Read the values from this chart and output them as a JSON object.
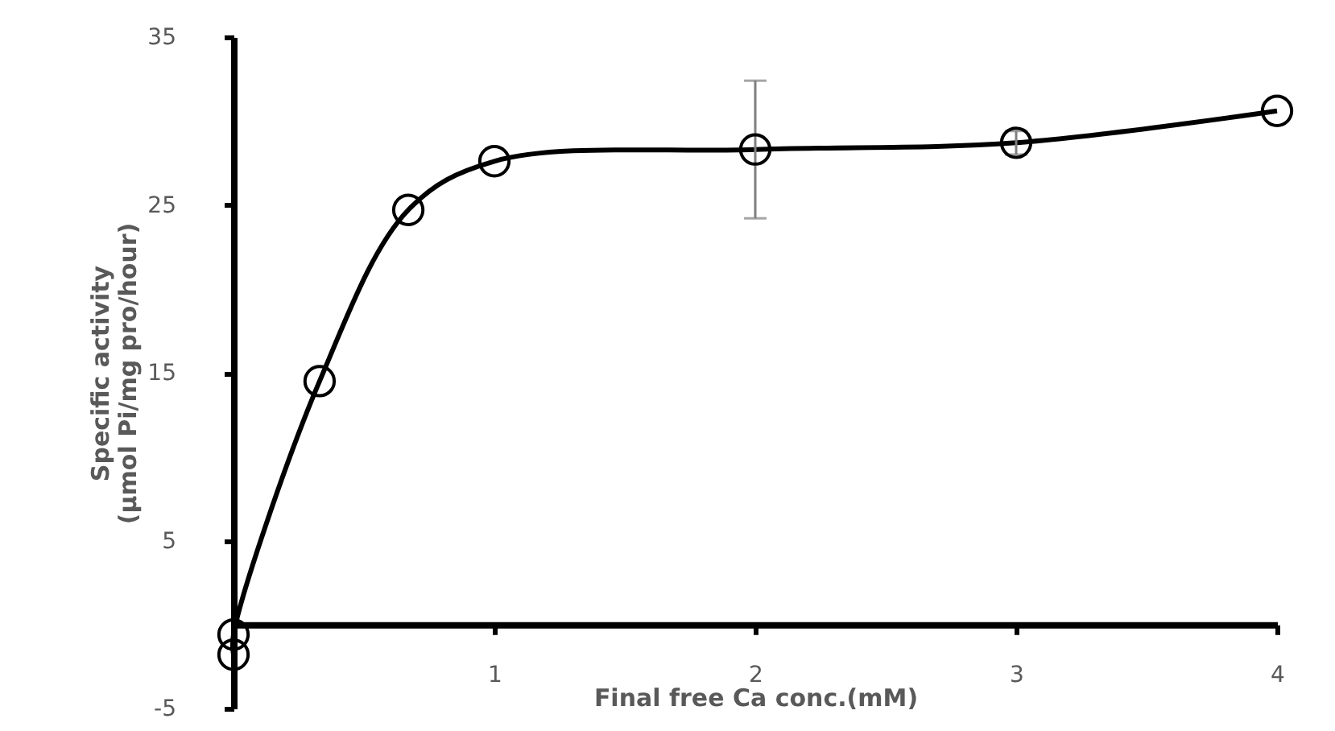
{
  "chart_data": {
    "type": "line",
    "xlabel": "Final free Ca conc.(mM)",
    "ylabel": "Specific activity\n(µmol Pi/mg pro/hour)",
    "x": [
      0,
      0,
      0.33,
      0.67,
      1,
      2,
      3,
      4
    ],
    "series": [
      {
        "color": "#000000",
        "values": [
          -1.8,
          -0.6,
          14.5,
          24.7,
          27.6,
          28.3,
          28.7,
          30.6
        ],
        "errors": [
          null,
          null,
          null,
          null,
          null,
          4.1,
          0.7,
          null
        ]
      }
    ],
    "xlim": [
      0,
      4
    ],
    "xticks": [
      1,
      2,
      3,
      4
    ],
    "ylim": [
      -5,
      35
    ],
    "yticks": [
      -5,
      5,
      15,
      25,
      35
    ],
    "marker": "circle",
    "line_style": "solid",
    "grid": false
  }
}
